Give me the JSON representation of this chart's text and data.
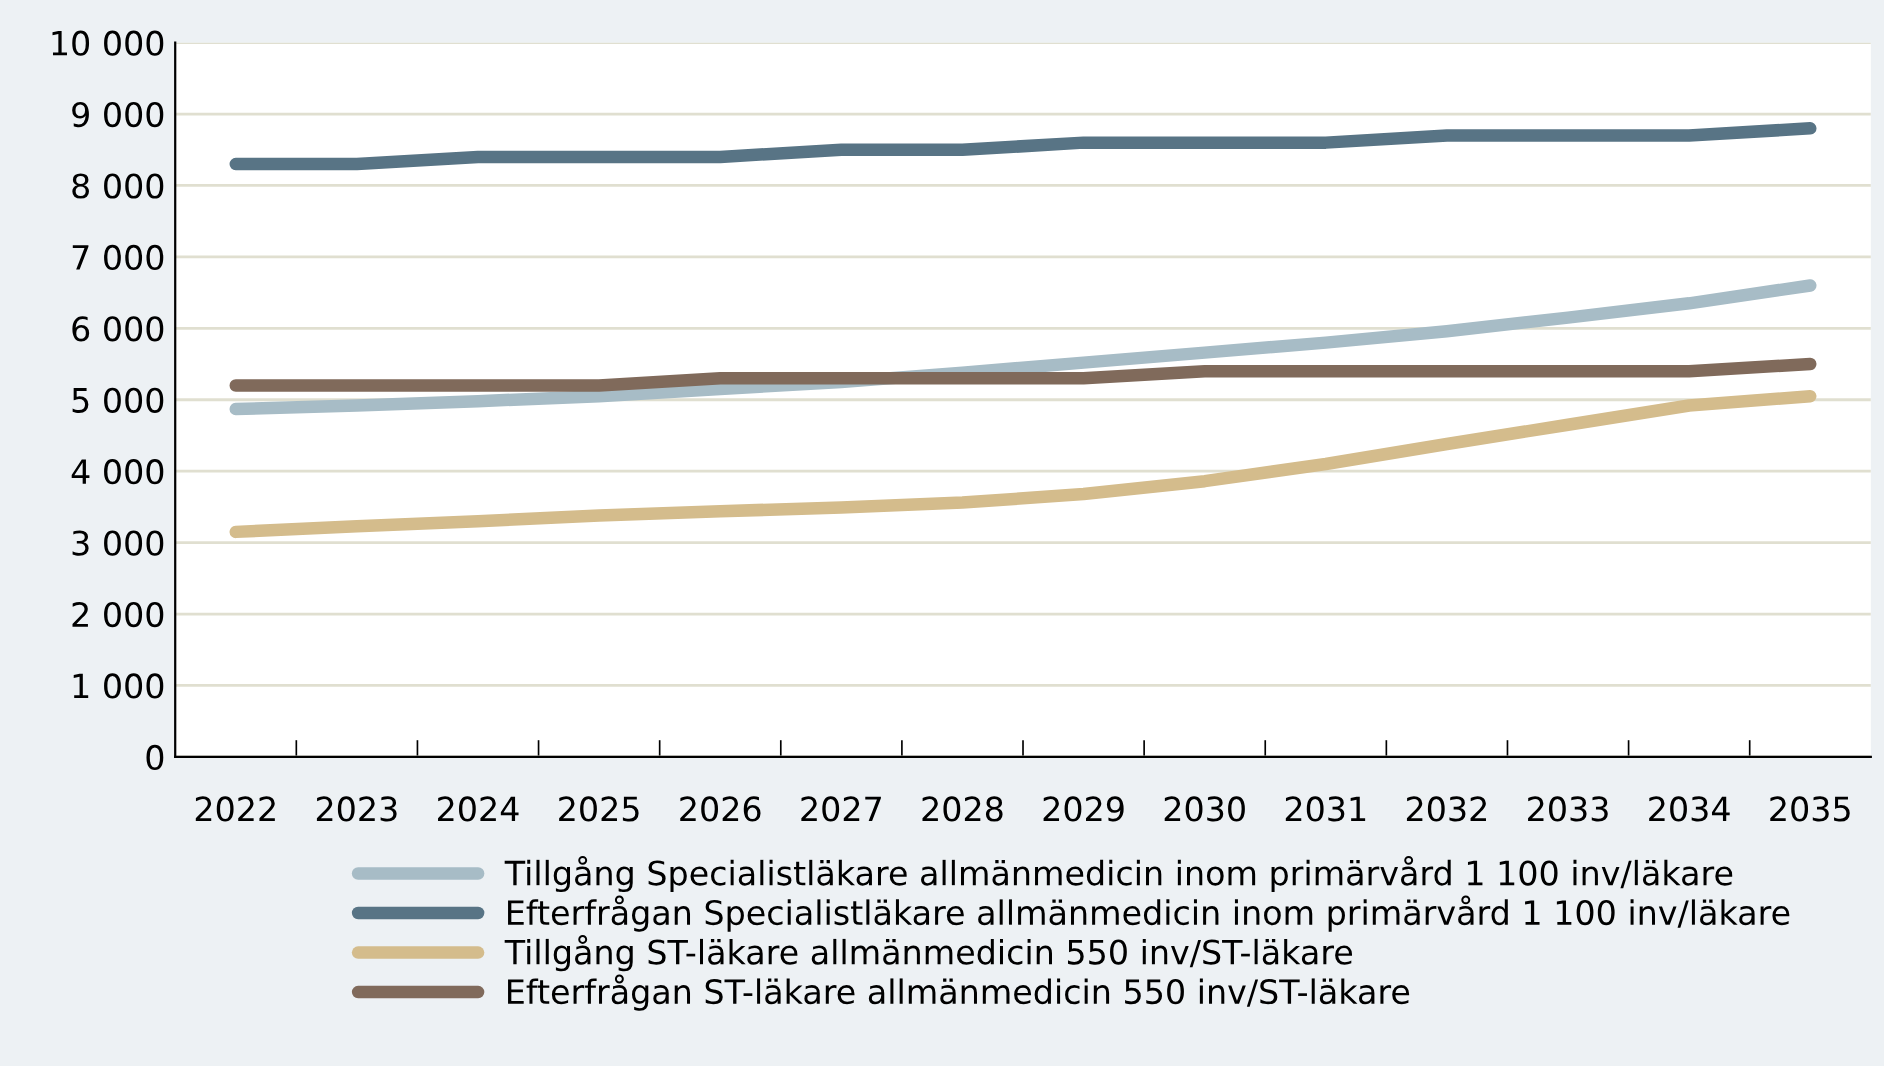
{
  "chart_data": {
    "type": "line",
    "categories": [
      "2022",
      "2023",
      "2024",
      "2025",
      "2026",
      "2027",
      "2028",
      "2029",
      "2030",
      "2031",
      "2032",
      "2033",
      "2034",
      "2035"
    ],
    "series": [
      {
        "name": "Tillgång Specialistläkare allmänmedicin inom primärvård 1 100 inv/läkare",
        "color": "#a7bcc6",
        "values": [
          4870,
          4920,
          4980,
          5050,
          5150,
          5250,
          5380,
          5520,
          5660,
          5800,
          5960,
          6150,
          6350,
          6600
        ]
      },
      {
        "name": "Efterfrågan Specialistläkare allmänmedicin inom primärvård 1 100 inv/läkare",
        "color": "#587485",
        "values": [
          8300,
          8300,
          8400,
          8400,
          8400,
          8500,
          8500,
          8600,
          8600,
          8600,
          8700,
          8700,
          8700,
          8800
        ]
      },
      {
        "name": "Tillgång ST-läkare allmänmedicin 550 inv/ST-läkare",
        "color": "#d4bc8c",
        "values": [
          3150,
          3230,
          3300,
          3380,
          3440,
          3490,
          3560,
          3680,
          3860,
          4100,
          4380,
          4650,
          4920,
          5050
        ]
      },
      {
        "name": "Efterfrågan ST-läkare allmänmedicin 550 inv/ST-läkare",
        "color": "#806a5b",
        "values": [
          5200,
          5200,
          5200,
          5200,
          5300,
          5300,
          5300,
          5300,
          5400,
          5400,
          5400,
          5400,
          5400,
          5500
        ]
      }
    ],
    "ylim": [
      0,
      10000
    ],
    "yticks": [
      0,
      {
        "value": 1000,
        "label": "1 000"
      },
      {
        "value": 2000,
        "label": "2 000"
      },
      {
        "value": 3000,
        "label": "3 000"
      },
      {
        "value": 4000,
        "label": "4 000"
      },
      {
        "value": 5000,
        "label": "5 000"
      },
      {
        "value": 6000,
        "label": "6 000"
      },
      {
        "value": 7000,
        "label": "7 000"
      },
      {
        "value": 8000,
        "label": "8 000"
      },
      {
        "value": 9000,
        "label": "9 000"
      },
      {
        "value": 10000,
        "label": "10 000"
      }
    ],
    "grid": "y",
    "legend": "bottom",
    "marker": "none",
    "line_style": "solid"
  }
}
